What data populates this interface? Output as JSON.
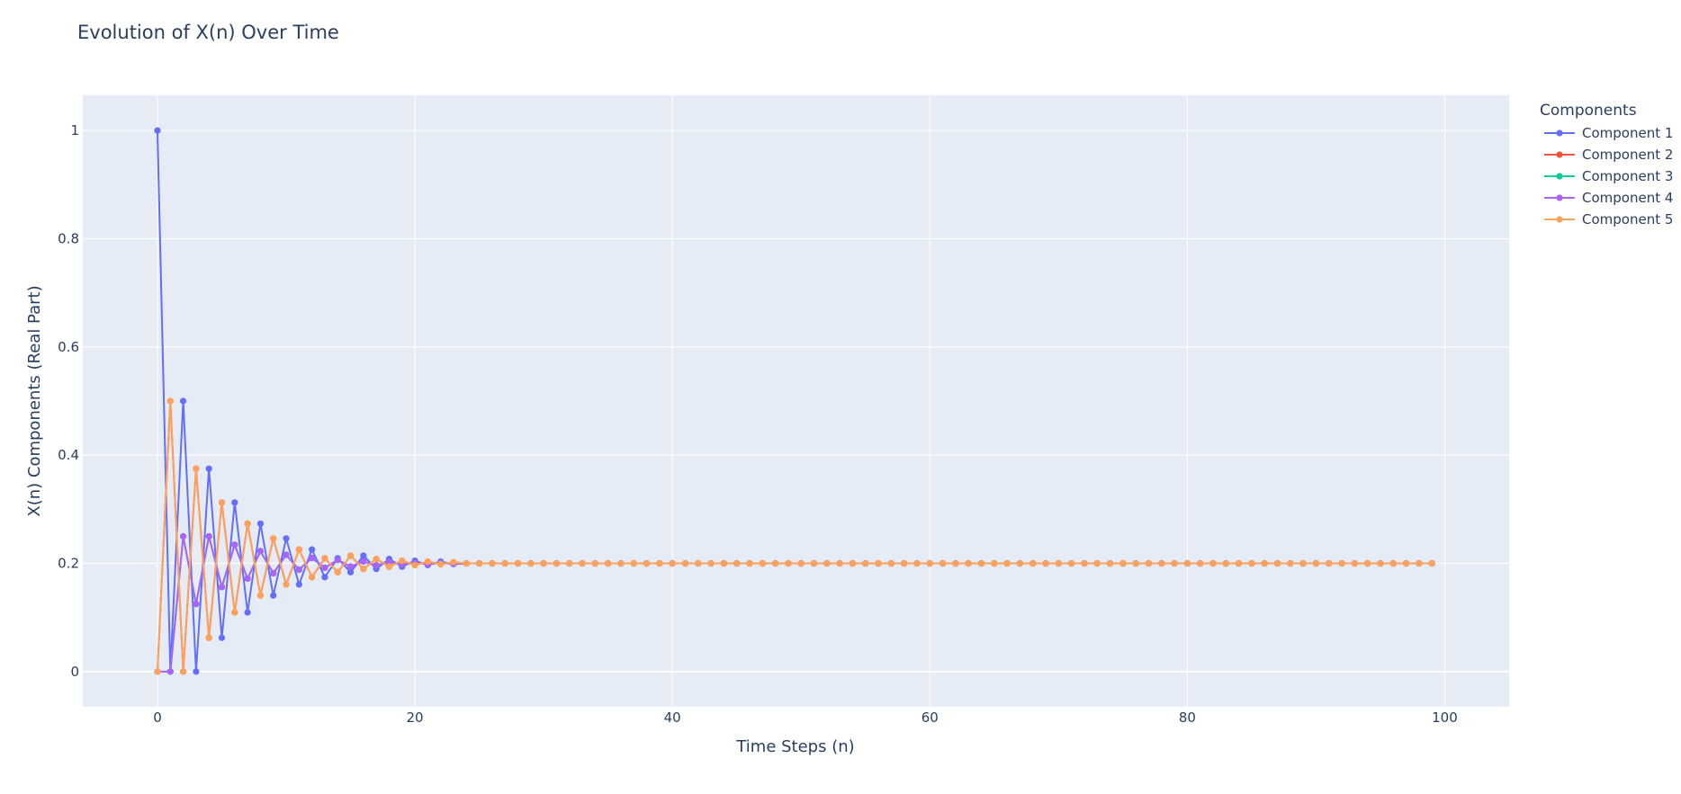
{
  "chart_data": {
    "type": "line",
    "title": "Evolution of X(n) Over Time",
    "xlabel": "Time Steps (n)",
    "ylabel": "X(n) Components (Real Part)",
    "xlim": [
      -5.8,
      105
    ],
    "ylim": [
      -0.065,
      1.065
    ],
    "xticks": [
      0,
      20,
      40,
      60,
      80,
      100
    ],
    "yticks": [
      0,
      0.2,
      0.4,
      0.6,
      0.8,
      1
    ],
    "ytick_labels": [
      "0",
      "0.2",
      "0.4",
      "0.6",
      "0.8",
      "1"
    ],
    "grid": true,
    "plot_background": "#e5ecf6",
    "legend": {
      "title": "Components",
      "placement": "right"
    },
    "n_steps": 100,
    "converged_value": 0.2,
    "series": [
      {
        "name": "Component 1",
        "color": "#636efa",
        "values": [
          1,
          0,
          0.5,
          0,
          0.375,
          0.0625,
          0.3125,
          0.109375,
          0.2734375,
          0.140625,
          0.24609375,
          0.16113281,
          0.22558594,
          0.17456055,
          0.20947266,
          0.18365479,
          0.2142334,
          0.1897583,
          0.20810699,
          0.19394302,
          0.20492172,
          0.19680119,
          0.20329368,
          0.19859219
        ]
      },
      {
        "name": "Component 2",
        "color": "#ef553b",
        "values": [
          0,
          0.5,
          0,
          0.375,
          0.0625,
          0.3125,
          0.109375,
          0.2734375,
          0.140625,
          0.24609375,
          0.16113281,
          0.22558594,
          0.17456055,
          0.20947266,
          0.18365479,
          0.2142334,
          0.1897583,
          0.20810699,
          0.19394302,
          0.20492172,
          0.19680119,
          0.20329368,
          0.19859219,
          0.20210147
        ]
      },
      {
        "name": "Component 3",
        "color": "#00cc96",
        "values": [
          0,
          0,
          0.25,
          0.125,
          0.25,
          0.15625,
          0.234375,
          0.171875,
          0.22265625,
          0.18164063,
          0.21582031,
          0.18823242,
          0.20996094,
          0.19189453,
          0.20629883,
          0.19425964,
          0.20351791,
          0.19634247,
          0.20229912,
          0.19774747,
          0.20141983,
          0.19856176,
          0.20089579,
          0.19903755
        ]
      },
      {
        "name": "Component 4",
        "color": "#ab63fa",
        "values": [
          0,
          0,
          0.25,
          0.125,
          0.25,
          0.15625,
          0.234375,
          0.171875,
          0.22265625,
          0.18164063,
          0.21582031,
          0.18823242,
          0.20996094,
          0.19189453,
          0.20629883,
          0.19425964,
          0.20351791,
          0.19634247,
          0.20229912,
          0.19774747,
          0.20141983,
          0.19856176,
          0.20089579,
          0.19903755
        ]
      },
      {
        "name": "Component 5",
        "color": "#ffa15a",
        "values": [
          0,
          0.5,
          0,
          0.375,
          0.0625,
          0.3125,
          0.109375,
          0.2734375,
          0.140625,
          0.24609375,
          0.16113281,
          0.22558594,
          0.17456055,
          0.20947266,
          0.18365479,
          0.2142334,
          0.1897583,
          0.20810699,
          0.19394302,
          0.20492172,
          0.19680119,
          0.20329368,
          0.19859219,
          0.20210147
        ]
      }
    ]
  }
}
